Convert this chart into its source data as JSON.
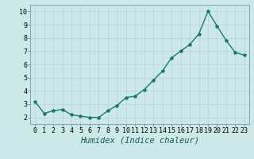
{
  "x": [
    0,
    1,
    2,
    3,
    4,
    5,
    6,
    7,
    8,
    9,
    10,
    11,
    12,
    13,
    14,
    15,
    16,
    17,
    18,
    19,
    20,
    21,
    22,
    23
  ],
  "y": [
    3.2,
    2.3,
    2.5,
    2.6,
    2.2,
    2.1,
    2.0,
    2.0,
    2.5,
    2.9,
    3.5,
    3.6,
    4.1,
    4.8,
    5.5,
    6.5,
    7.0,
    7.5,
    8.3,
    10.0,
    8.9,
    7.8,
    6.9,
    6.7
  ],
  "line_color": "#1a7a6a",
  "marker": "*",
  "marker_size": 3,
  "bg_color": "#cde8e8",
  "grid_color": "#b8d8d8",
  "xlabel": "Humidex (Indice chaleur)",
  "ylim": [
    1.5,
    10.5
  ],
  "xlim": [
    -0.5,
    23.5
  ],
  "yticks": [
    2,
    3,
    4,
    5,
    6,
    7,
    8,
    9,
    10
  ],
  "xticks": [
    0,
    1,
    2,
    3,
    4,
    5,
    6,
    7,
    8,
    9,
    10,
    11,
    12,
    13,
    14,
    15,
    16,
    17,
    18,
    19,
    20,
    21,
    22,
    23
  ],
  "tick_fontsize": 6,
  "label_fontsize": 7.5,
  "line_width": 1.0
}
